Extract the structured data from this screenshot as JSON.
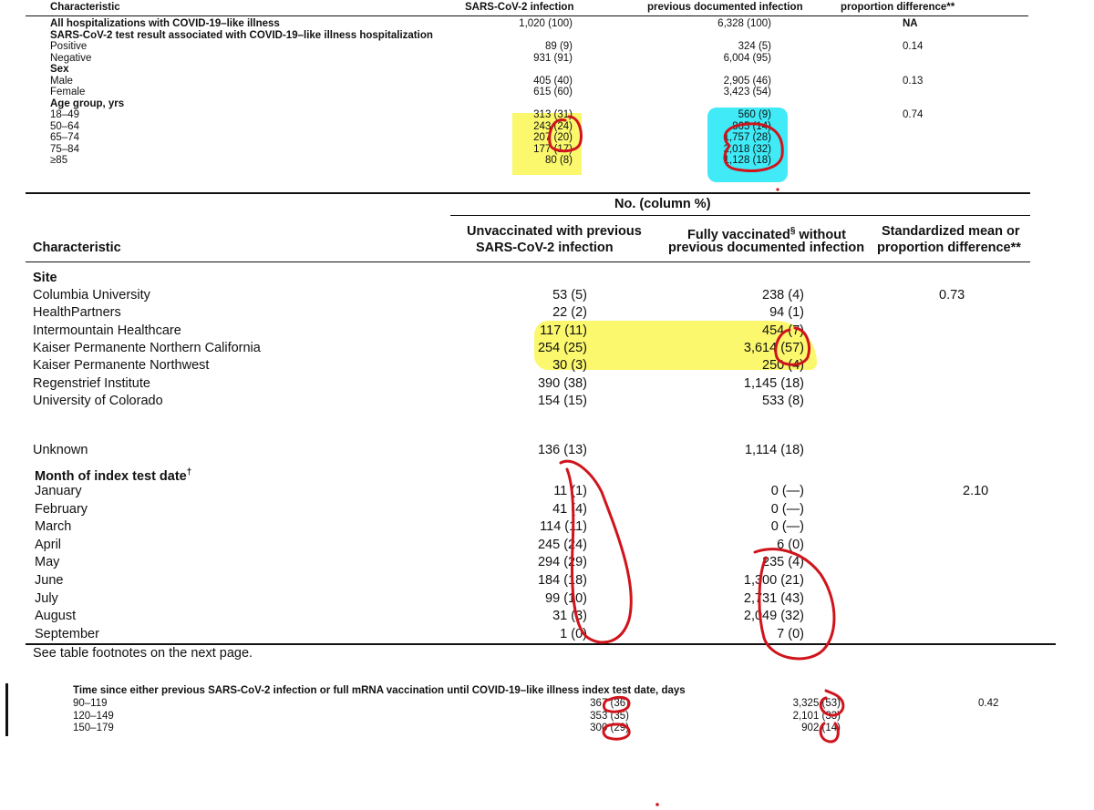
{
  "top_table": {
    "header": {
      "characteristic": "Characteristic",
      "col1": "SARS-CoV-2 infection",
      "col2": "previous documented infection",
      "col3": "proportion difference**"
    },
    "rows": [
      {
        "label": "All hospitalizations with COVID-19–like illness",
        "c1": "1,020 (100)",
        "c2": "6,328 (100)",
        "c3": "NA",
        "bold": true
      },
      {
        "label": "SARS-CoV-2 test result associated with COVID-19–like illness hospitalization",
        "c1": "",
        "c2": "",
        "c3": "",
        "bold": true
      },
      {
        "label": "Positive",
        "c1": "89 (9)",
        "c2": "324 (5)",
        "c3": "0.14"
      },
      {
        "label": "Negative",
        "c1": "931 (91)",
        "c2": "6,004 (95)",
        "c3": ""
      },
      {
        "label": "Sex",
        "c1": "",
        "c2": "",
        "c3": "",
        "bold": true
      },
      {
        "label": "Male",
        "c1": "405 (40)",
        "c2": "2,905 (46)",
        "c3": "0.13"
      },
      {
        "label": "Female",
        "c1": "615 (60)",
        "c2": "3,423 (54)",
        "c3": ""
      },
      {
        "label": "Age group, yrs",
        "c1": "",
        "c2": "",
        "c3": "",
        "bold": true
      },
      {
        "label": "18–49",
        "c1": "313 (31)",
        "c2": "560 (9)",
        "c3": "0.74"
      },
      {
        "label": "50–64",
        "c1": "243 (24)",
        "c2": "865 (14)",
        "c3": ""
      },
      {
        "label": "65–74",
        "c1": "207 (20)",
        "c2": "1,757 (28)",
        "c3": ""
      },
      {
        "label": "75–84",
        "c1": "177 (17)",
        "c2": "2,018 (32)",
        "c3": ""
      },
      {
        "label": "≥85",
        "c1": "80 (8)",
        "c2": "1,128 (18)",
        "c3": ""
      }
    ]
  },
  "main_table": {
    "group_header": "No. (column %)",
    "characteristic": "Characteristic",
    "col1_line1": "Unvaccinated with previous",
    "col1_line2": "SARS-CoV-2 infection",
    "col2_line1_a": "Fully vaccinated",
    "col2_line1_sup": "§",
    "col2_line1_b": " without",
    "col2_line2": "previous documented infection",
    "col3_line1": "Standardized mean or",
    "col3_line2": "proportion difference**",
    "site_heading": "Site",
    "site_rows": [
      {
        "label": "Columbia University",
        "c1": "53 (5)",
        "c2": "238 (4)",
        "c3": "0.73"
      },
      {
        "label": "HealthPartners",
        "c1": "22 (2)",
        "c2": "94 (1)",
        "c3": ""
      },
      {
        "label": "Intermountain Healthcare",
        "c1": "117 (11)",
        "c2": "454 (7)",
        "c3": ""
      },
      {
        "label": "Kaiser Permanente Northern California",
        "c1": "254 (25)",
        "c2": "3,614 (57)",
        "c3": ""
      },
      {
        "label": "Kaiser Permanente Northwest",
        "c1": "30 (3)",
        "c2": "250 (4)",
        "c3": ""
      },
      {
        "label": "Regenstrief Institute",
        "c1": "390 (38)",
        "c2": "1,145 (18)",
        "c3": ""
      },
      {
        "label": "University of Colorado",
        "c1": "154 (15)",
        "c2": "533 (8)",
        "c3": ""
      }
    ],
    "unknown_row": {
      "label": "Unknown",
      "c1": "136 (13)",
      "c2": "1,114 (18)"
    },
    "month_heading": "Month of index test date",
    "month_heading_sup": "†",
    "month_rows": [
      {
        "label": "January",
        "c1": "11 (1)",
        "c2": "0 (—)",
        "c3": "2.10"
      },
      {
        "label": "February",
        "c1": "41 (4)",
        "c2": "0 (—)",
        "c3": ""
      },
      {
        "label": "March",
        "c1": "114 (11)",
        "c2": "0 (—)",
        "c3": ""
      },
      {
        "label": "April",
        "c1": "245 (24)",
        "c2": "6 (0)",
        "c3": ""
      },
      {
        "label": "May",
        "c1": "294 (29)",
        "c2": "235 (4)",
        "c3": ""
      },
      {
        "label": "June",
        "c1": "184 (18)",
        "c2": "1,300 (21)",
        "c3": ""
      },
      {
        "label": "July",
        "c1": "99 (10)",
        "c2": "2,731 (43)",
        "c3": ""
      },
      {
        "label": "August",
        "c1": "31 (3)",
        "c2": "2,049 (32)",
        "c3": ""
      },
      {
        "label": "September",
        "c1": "1 (0)",
        "c2": "7 (0)",
        "c3": ""
      }
    ],
    "footnote": "See table footnotes on the next page."
  },
  "bottom_table": {
    "heading": "Time since either previous SARS-CoV-2 infection or full mRNA vaccination until COVID-19–like illness index test date, days",
    "rows": [
      {
        "label": "90–119",
        "c1": "367 (36)",
        "c2": "3,325 (53)",
        "c3": "0.42"
      },
      {
        "label": "120–149",
        "c1": "353 (35)",
        "c2": "2,101 (33)",
        "c3": ""
      },
      {
        "label": "150–179",
        "c1": "300 (29)",
        "c2": "902 (14)",
        "c3": ""
      }
    ]
  },
  "highlight_colors": {
    "yellow": "#faf53c",
    "cyan": "#1ee6f5",
    "pen": "#d0141c"
  }
}
